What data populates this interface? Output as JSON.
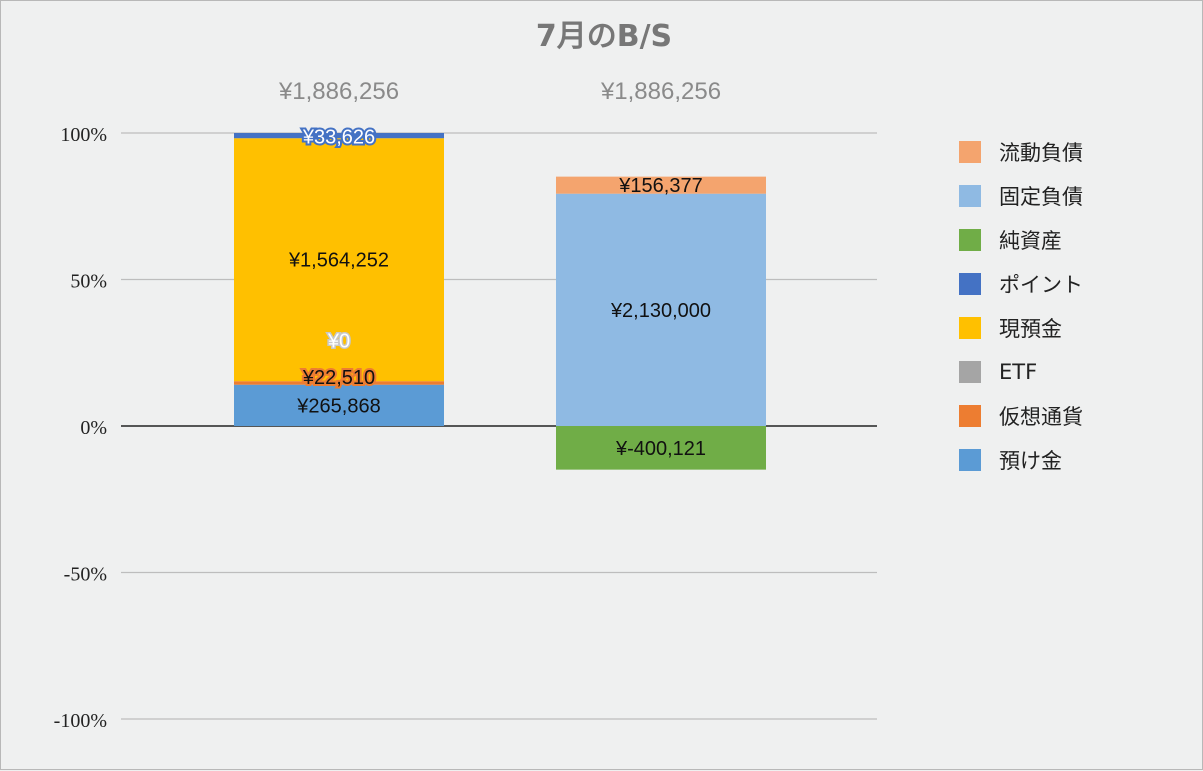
{
  "chart_data": {
    "type": "bar",
    "stacked": true,
    "normalized_percent": true,
    "title": "7月のB/S",
    "y_ticks": [
      "100%",
      "50%",
      "0%",
      "-50%",
      "-100%"
    ],
    "ylim": [
      -100,
      100
    ],
    "grid": true,
    "legend_position": "right",
    "totals": [
      "¥1,886,256",
      "¥1,886,256"
    ],
    "bars": [
      {
        "segments": [
          {
            "series": "預け金",
            "value": 265868,
            "label": "¥265,868",
            "color": "#5b9bd5"
          },
          {
            "series": "仮想通貨",
            "value": 22510,
            "label": "¥22,510",
            "color": "#ed7d31"
          },
          {
            "series": "ETF",
            "value": 0,
            "label": "¥0",
            "color": "#a5a5a5"
          },
          {
            "series": "現預金",
            "value": 1564252,
            "label": "¥1,564,252",
            "color": "#ffc000"
          },
          {
            "series": "ポイント",
            "value": 33626,
            "label": "¥33,626",
            "color": "#4472c4"
          }
        ]
      },
      {
        "segments": [
          {
            "series": "純資産",
            "value": -400121,
            "label": "¥-400,121",
            "color": "#70ad47"
          },
          {
            "series": "固定負債",
            "value": 2130000,
            "label": "¥2,130,000",
            "color": "#8fbae3"
          },
          {
            "series": "流動負債",
            "value": 156377,
            "label": "¥156,377",
            "color": "#f4a46e"
          }
        ]
      }
    ],
    "legend": [
      {
        "name": "流動負債",
        "color": "#f4a46e"
      },
      {
        "name": "固定負債",
        "color": "#8fbae3"
      },
      {
        "name": "純資産",
        "color": "#70ad47"
      },
      {
        "name": "ポイント",
        "color": "#4472c4"
      },
      {
        "name": "現預金",
        "color": "#ffc000"
      },
      {
        "name": "ETF",
        "color": "#a5a5a5"
      },
      {
        "name": "仮想通貨",
        "color": "#ed7d31"
      },
      {
        "name": "預け金",
        "color": "#5b9bd5"
      }
    ]
  }
}
